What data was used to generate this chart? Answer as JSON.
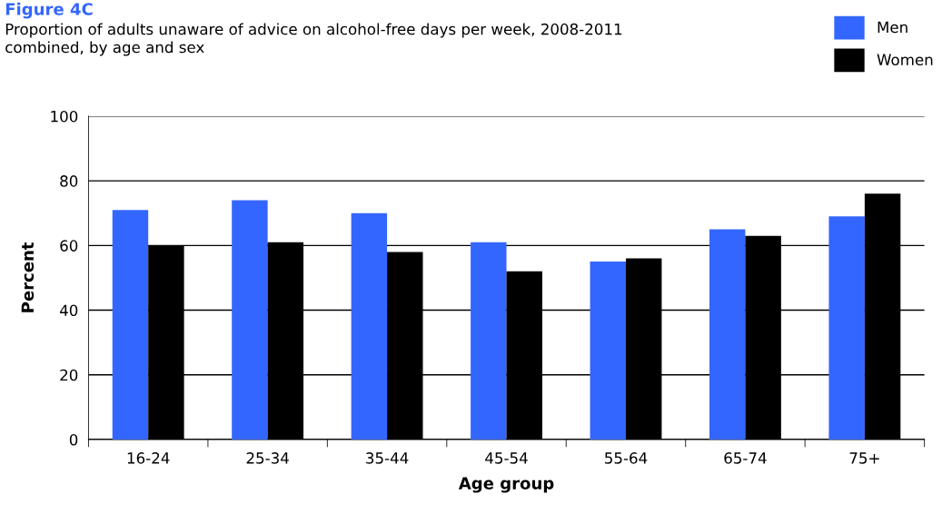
{
  "chart_data": {
    "type": "bar",
    "title": "Figure 4C",
    "subtitle": "Proportion of adults unaware of advice on alcohol-free days per week, 2008-2011\ncombined, by age and sex",
    "xlabel": "Age group",
    "ylabel": "Percent",
    "categories": [
      "16-24",
      "25-34",
      "35-44",
      "45-54",
      "55-64",
      "65-74",
      "75+"
    ],
    "series": [
      {
        "name": "Men",
        "color": "#3366ff",
        "values": [
          71,
          74,
          70,
          61,
          55,
          65,
          69
        ]
      },
      {
        "name": "Women",
        "color": "#000000",
        "values": [
          60,
          61,
          58,
          52,
          56,
          63,
          76
        ]
      }
    ],
    "ylim": [
      0,
      100
    ],
    "yticks": [
      0,
      20,
      40,
      60,
      80,
      100
    ],
    "grid": "y",
    "legend": "top right"
  }
}
